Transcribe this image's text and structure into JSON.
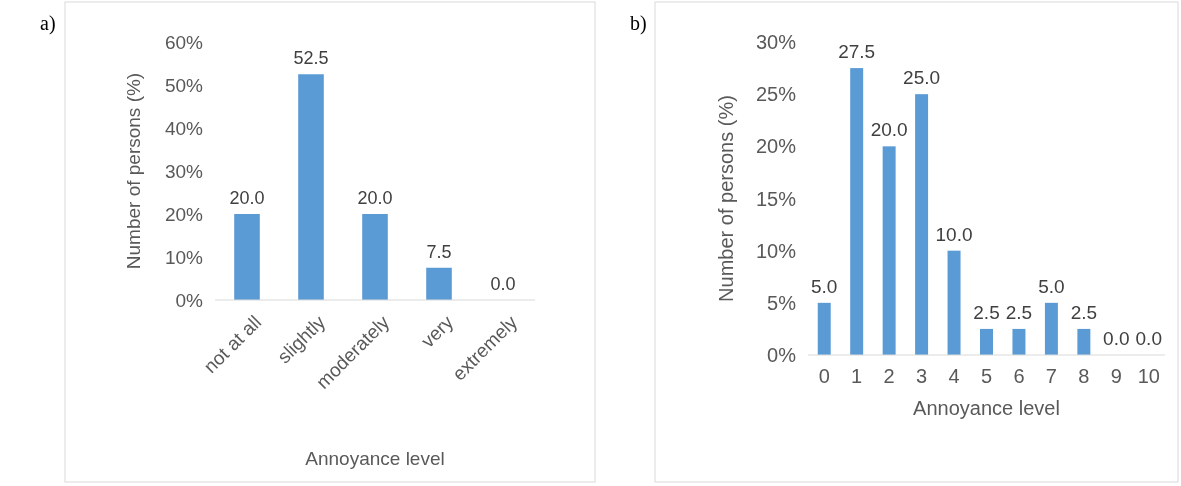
{
  "chart_data": [
    {
      "type": "bar",
      "title": "a)",
      "xlabel": "Annoyance level",
      "ylabel": "Number of persons (%)",
      "categories": [
        "not at all",
        "slightly",
        "moderately",
        "very",
        "extremely"
      ],
      "values": [
        20,
        52.5,
        20,
        7.5,
        0
      ],
      "value_labels": [
        "20.0",
        "52.5",
        "20.0",
        "7.5",
        "0.0"
      ],
      "color": "#5b9bd5",
      "ylim": [
        0,
        60
      ],
      "yticks": [
        {
          "value": 0,
          "label": "0%"
        },
        {
          "value": 10,
          "label": "10%"
        },
        {
          "value": 20,
          "label": "20%"
        },
        {
          "value": 30,
          "label": "30%"
        },
        {
          "value": 40,
          "label": "40%"
        },
        {
          "value": 50,
          "label": "50%"
        },
        {
          "value": 60,
          "label": "60%"
        }
      ]
    },
    {
      "type": "bar",
      "title": "b)",
      "xlabel": "Annoyance level",
      "ylabel": "Number of persons (%)",
      "categories": [
        "0",
        "1",
        "2",
        "3",
        "4",
        "5",
        "6",
        "7",
        "8",
        "9",
        "10"
      ],
      "values": [
        5,
        27.5,
        20,
        25,
        10,
        2.5,
        2.5,
        5,
        2.5,
        0,
        0
      ],
      "value_labels": [
        "5.0",
        "27.5",
        "20.0",
        "25.0",
        "10.0",
        "2.5",
        "2.5",
        "5.0",
        "2.5",
        "0.0",
        "0.0"
      ],
      "color": "#5b9bd5",
      "ylim": [
        0,
        30
      ],
      "yticks": [
        {
          "value": 0,
          "label": "0%"
        },
        {
          "value": 5,
          "label": "5%"
        },
        {
          "value": 10,
          "label": "10%"
        },
        {
          "value": 15,
          "label": "15%"
        },
        {
          "value": 20,
          "label": "20%"
        },
        {
          "value": 25,
          "label": "25%"
        },
        {
          "value": 30,
          "label": "30%"
        }
      ]
    }
  ]
}
